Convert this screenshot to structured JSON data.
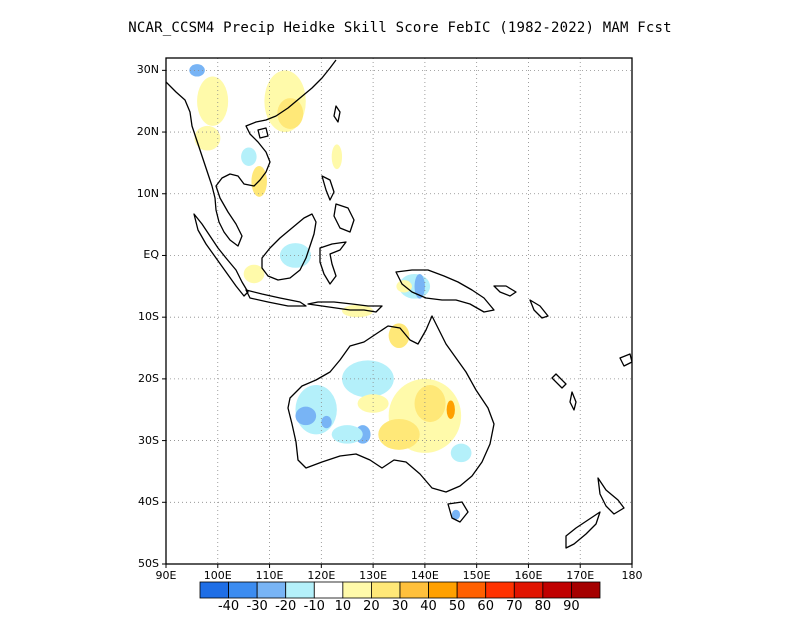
{
  "title": "NCAR_CCSM4 Precip Heidke Skill Score FebIC (1982-2022) MAM Fcst",
  "map": {
    "lon_range": [
      90,
      180
    ],
    "lat_range": [
      -50,
      32
    ],
    "lat_ticks": [
      {
        "value": 30,
        "label": "30N"
      },
      {
        "value": 20,
        "label": "20N"
      },
      {
        "value": 10,
        "label": "10N"
      },
      {
        "value": 0,
        "label": "EQ"
      },
      {
        "value": -10,
        "label": "10S"
      },
      {
        "value": -20,
        "label": "20S"
      },
      {
        "value": -30,
        "label": "30S"
      },
      {
        "value": -40,
        "label": "40S"
      },
      {
        "value": -50,
        "label": "50S"
      }
    ],
    "lon_ticks": [
      {
        "value": 90,
        "label": "90E"
      },
      {
        "value": 100,
        "label": "100E"
      },
      {
        "value": 110,
        "label": "110E"
      },
      {
        "value": 120,
        "label": "120E"
      },
      {
        "value": 130,
        "label": "130E"
      },
      {
        "value": 140,
        "label": "140E"
      },
      {
        "value": 150,
        "label": "150E"
      },
      {
        "value": 160,
        "label": "160E"
      },
      {
        "value": 170,
        "label": "170E"
      },
      {
        "value": 180,
        "label": "180"
      }
    ],
    "grid": true
  },
  "colorbar": {
    "colors": [
      "#1e6ee6",
      "#3c8cf0",
      "#78b4f5",
      "#b4f0fa",
      "#ffffff",
      "#fffaaa",
      "#ffe878",
      "#ffc03c",
      "#ffa000",
      "#ff6000",
      "#ff3200",
      "#e11400",
      "#c00000",
      "#a50000"
    ],
    "labels": [
      "-40",
      "-30",
      "-20",
      "-10",
      "10",
      "20",
      "30",
      "40",
      "50",
      "60",
      "70",
      "80",
      "90"
    ]
  },
  "skill_regions": [
    {
      "value": 15,
      "lon": 113,
      "lat": 25,
      "rx": 4,
      "ry": 5
    },
    {
      "value": 20,
      "lon": 114,
      "lat": 23,
      "rx": 2.5,
      "ry": 2.5
    },
    {
      "value": 15,
      "lon": 99,
      "lat": 25,
      "rx": 3,
      "ry": 4
    },
    {
      "value": 15,
      "lon": 98,
      "lat": 19,
      "rx": 2.5,
      "ry": 2
    },
    {
      "value": 20,
      "lon": 108,
      "lat": 12,
      "rx": 1.5,
      "ry": 2.5
    },
    {
      "value": 15,
      "lon": 123,
      "lat": 16,
      "rx": 1,
      "ry": 2
    },
    {
      "value": -15,
      "lon": 106,
      "lat": 16,
      "rx": 1.5,
      "ry": 1.5
    },
    {
      "value": -25,
      "lon": 96,
      "lat": 30,
      "rx": 1.5,
      "ry": 1
    },
    {
      "value": -15,
      "lon": 115,
      "lat": 0,
      "rx": 3,
      "ry": 2
    },
    {
      "value": 15,
      "lon": 107,
      "lat": -3,
      "rx": 2,
      "ry": 1.5
    },
    {
      "value": -15,
      "lon": 138,
      "lat": -5,
      "rx": 3,
      "ry": 2
    },
    {
      "value": -25,
      "lon": 139,
      "lat": -5,
      "rx": 1,
      "ry": 2
    },
    {
      "value": 15,
      "lon": 136,
      "lat": -5,
      "rx": 1.5,
      "ry": 1
    },
    {
      "value": 15,
      "lon": 127,
      "lat": -9,
      "rx": 3,
      "ry": 1
    },
    {
      "value": 20,
      "lon": 135,
      "lat": -13,
      "rx": 2,
      "ry": 2
    },
    {
      "value": -12,
      "lon": 129,
      "lat": -20,
      "rx": 5,
      "ry": 3
    },
    {
      "value": -15,
      "lon": 119,
      "lat": -25,
      "rx": 4,
      "ry": 4
    },
    {
      "value": -25,
      "lon": 117,
      "lat": -26,
      "rx": 2,
      "ry": 1.5
    },
    {
      "value": -25,
      "lon": 121,
      "lat": -27,
      "rx": 1,
      "ry": 1
    },
    {
      "value": -30,
      "lon": 128,
      "lat": -29,
      "rx": 1.5,
      "ry": 1.5
    },
    {
      "value": -15,
      "lon": 125,
      "lat": -29,
      "rx": 3,
      "ry": 1.5
    },
    {
      "value": 15,
      "lon": 140,
      "lat": -26,
      "rx": 7,
      "ry": 6
    },
    {
      "value": 25,
      "lon": 141,
      "lat": -24,
      "rx": 3,
      "ry": 3
    },
    {
      "value": 40,
      "lon": 145,
      "lat": -25,
      "rx": 0.8,
      "ry": 1.5
    },
    {
      "value": 20,
      "lon": 135,
      "lat": -29,
      "rx": 4,
      "ry": 2.5
    },
    {
      "value": 15,
      "lon": 130,
      "lat": -24,
      "rx": 3,
      "ry": 1.5
    },
    {
      "value": -15,
      "lon": 147,
      "lat": -32,
      "rx": 2,
      "ry": 1.5
    },
    {
      "value": -25,
      "lon": 146,
      "lat": -42,
      "rx": 0.8,
      "ry": 0.8
    }
  ]
}
